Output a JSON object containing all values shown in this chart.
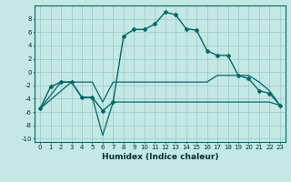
{
  "xlabel": "Humidex (Indice chaleur)",
  "background_color": "#c4e8e4",
  "grid_color": "#a0cccc",
  "line_color": "#006868",
  "xlim": [
    -0.5,
    23.5
  ],
  "ylim": [
    -10.5,
    10
  ],
  "yticks": [
    -10,
    -8,
    -6,
    -4,
    -2,
    0,
    2,
    4,
    6,
    8
  ],
  "xticks": [
    0,
    1,
    2,
    3,
    4,
    5,
    6,
    7,
    8,
    9,
    10,
    11,
    12,
    13,
    14,
    15,
    16,
    17,
    18,
    19,
    20,
    21,
    22,
    23
  ],
  "series1_x": [
    0,
    1,
    2,
    3,
    4,
    5,
    6,
    7,
    8,
    9,
    10,
    11,
    12,
    13,
    14,
    15,
    16,
    17,
    18,
    19,
    20,
    21,
    22,
    23
  ],
  "series1_y": [
    -5.5,
    -2.2,
    -1.5,
    -1.5,
    -3.8,
    -3.8,
    -5.8,
    -4.5,
    5.4,
    6.4,
    6.4,
    7.2,
    9.0,
    8.6,
    6.5,
    6.3,
    3.2,
    2.5,
    2.5,
    -0.5,
    -1.0,
    -2.8,
    -3.2,
    -5.0
  ],
  "series2_x": [
    0,
    2,
    3,
    4,
    5,
    6,
    7,
    8,
    9,
    10,
    11,
    12,
    13,
    14,
    15,
    16,
    17,
    18,
    19,
    20,
    21,
    22,
    23
  ],
  "series2_y": [
    -5.5,
    -1.5,
    -1.5,
    -1.5,
    -1.5,
    -4.5,
    -1.5,
    -1.5,
    -1.5,
    -1.5,
    -1.5,
    -1.5,
    -1.5,
    -1.5,
    -1.5,
    -1.5,
    -0.5,
    -0.5,
    -0.5,
    -0.5,
    -1.5,
    -2.8,
    -5.0
  ],
  "series3_x": [
    0,
    3,
    4,
    5,
    6,
    7,
    8,
    9,
    10,
    11,
    12,
    13,
    14,
    15,
    16,
    17,
    18,
    19,
    20,
    21,
    22,
    23
  ],
  "series3_y": [
    -5.5,
    -1.5,
    -3.8,
    -3.8,
    -9.5,
    -4.5,
    -4.5,
    -4.5,
    -4.5,
    -4.5,
    -4.5,
    -4.5,
    -4.5,
    -4.5,
    -4.5,
    -4.5,
    -4.5,
    -4.5,
    -4.5,
    -4.5,
    -4.5,
    -5.0
  ],
  "label_fontsize": 5.0,
  "xlabel_fontsize": 6.5
}
